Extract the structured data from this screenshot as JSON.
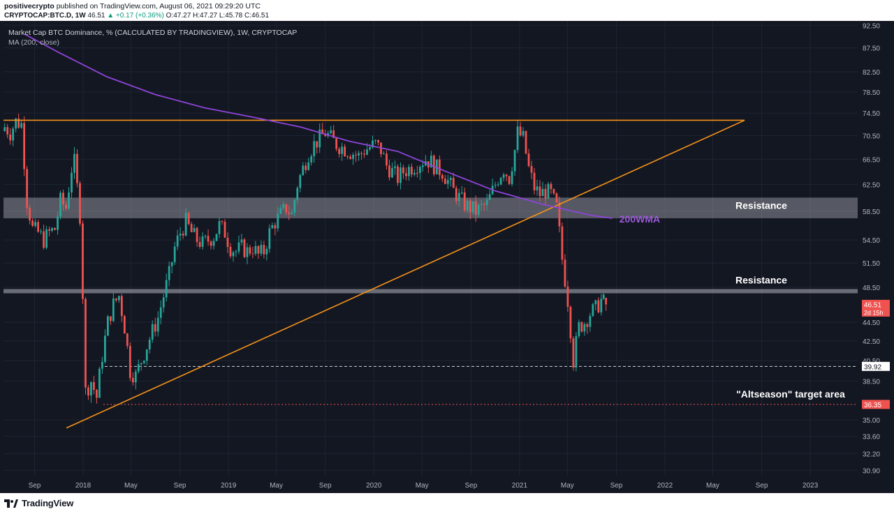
{
  "publication": {
    "author": "positivecrypto",
    "published_text": "published on TradingView.com, August 06, 2021 09:29:20 UTC",
    "symbol": "CRYPTOCAP:BTC.D, 1W",
    "last": "46.51",
    "change": "▲ +0.17 (+0.36%)",
    "ohlc": {
      "O": "47.27",
      "H": "47.27",
      "L": "45.78",
      "C": "46.51"
    }
  },
  "legend": {
    "series_title": "Market Cap BTC Dominance, % (CALCULATED BY TRADINGVIEW), 1W, CRYPTOCAP",
    "ma_title": "MA (200, close)"
  },
  "footer": {
    "brand": "TradingView"
  },
  "colors": {
    "background": "#131722",
    "grid": "#1f2433",
    "up": "#26a69a",
    "down": "#ef5350",
    "ma": "#8e44d9",
    "trendline": "#f7931a",
    "zone": "#b2b5be",
    "price_badge": "#ef5350",
    "axis_text": "#b2b5be"
  },
  "chart_data": {
    "type": "candlestick",
    "title": "Market Cap BTC Dominance, % (CALCULATED BY TRADINGVIEW), 1W, CRYPTOCAP",
    "xlim": [
      "2017-06-15",
      "2023-04-30"
    ],
    "ylim": [
      30.5,
      93.5
    ],
    "y_scale": "log",
    "y_ticks": [
      "92.50",
      "87.50",
      "82.50",
      "78.50",
      "74.50",
      "70.50",
      "66.50",
      "62.50",
      "58.50",
      "54.50",
      "51.50",
      "48.50",
      "44.50",
      "42.50",
      "40.50",
      "38.50",
      "35.00",
      "33.60",
      "32.20",
      "30.90"
    ],
    "x_ticks": [
      {
        "label": "Sep",
        "date": "2017-09-01"
      },
      {
        "label": "2018",
        "date": "2018-01-01"
      },
      {
        "label": "May",
        "date": "2018-05-01"
      },
      {
        "label": "Sep",
        "date": "2018-09-01"
      },
      {
        "label": "2019",
        "date": "2019-01-01"
      },
      {
        "label": "May",
        "date": "2019-05-01"
      },
      {
        "label": "Sep",
        "date": "2019-09-01"
      },
      {
        "label": "2020",
        "date": "2020-01-01"
      },
      {
        "label": "May",
        "date": "2020-05-01"
      },
      {
        "label": "Sep",
        "date": "2020-09-01"
      },
      {
        "label": "2021",
        "date": "2021-01-01"
      },
      {
        "label": "May",
        "date": "2021-05-01"
      },
      {
        "label": "Sep",
        "date": "2021-09-01"
      },
      {
        "label": "2022",
        "date": "2022-01-01"
      },
      {
        "label": "May",
        "date": "2022-05-01"
      },
      {
        "label": "Sep",
        "date": "2022-09-01"
      },
      {
        "label": "2023",
        "date": "2023-01-01"
      }
    ],
    "weekly_close": [
      {
        "date": "2017-06-18",
        "close": 72.0
      },
      {
        "date": "2017-07-02",
        "close": 71.0
      },
      {
        "date": "2017-07-16",
        "close": 73.0
      },
      {
        "date": "2017-07-30",
        "close": 72.5
      },
      {
        "date": "2017-08-13",
        "close": 60.0
      },
      {
        "date": "2017-08-27",
        "close": 56.0
      },
      {
        "date": "2017-09-10",
        "close": 55.5
      },
      {
        "date": "2017-09-24",
        "close": 54.5
      },
      {
        "date": "2017-10-08",
        "close": 55.5
      },
      {
        "date": "2017-10-22",
        "close": 56.0
      },
      {
        "date": "2017-11-05",
        "close": 60.0
      },
      {
        "date": "2017-11-19",
        "close": 59.0
      },
      {
        "date": "2017-12-03",
        "close": 65.0
      },
      {
        "date": "2017-12-10",
        "close": 66.0
      },
      {
        "date": "2017-12-24",
        "close": 58.0
      },
      {
        "date": "2018-01-07",
        "close": 37.5
      },
      {
        "date": "2018-01-21",
        "close": 38.5
      },
      {
        "date": "2018-02-04",
        "close": 37.0
      },
      {
        "date": "2018-02-18",
        "close": 41.0
      },
      {
        "date": "2018-03-04",
        "close": 44.5
      },
      {
        "date": "2018-03-18",
        "close": 46.5
      },
      {
        "date": "2018-04-01",
        "close": 47.5
      },
      {
        "date": "2018-04-15",
        "close": 44.0
      },
      {
        "date": "2018-04-29",
        "close": 39.5
      },
      {
        "date": "2018-05-13",
        "close": 39.0
      },
      {
        "date": "2018-05-27",
        "close": 40.5
      },
      {
        "date": "2018-06-10",
        "close": 42.0
      },
      {
        "date": "2018-06-24",
        "close": 43.5
      },
      {
        "date": "2018-07-08",
        "close": 45.0
      },
      {
        "date": "2018-07-22",
        "close": 47.5
      },
      {
        "date": "2018-08-05",
        "close": 50.0
      },
      {
        "date": "2018-08-19",
        "close": 53.5
      },
      {
        "date": "2018-09-02",
        "close": 55.5
      },
      {
        "date": "2018-09-16",
        "close": 57.0
      },
      {
        "date": "2018-09-30",
        "close": 55.5
      },
      {
        "date": "2018-10-14",
        "close": 54.5
      },
      {
        "date": "2018-10-28",
        "close": 54.0
      },
      {
        "date": "2018-11-11",
        "close": 54.5
      },
      {
        "date": "2018-11-25",
        "close": 55.0
      },
      {
        "date": "2018-12-09",
        "close": 56.5
      },
      {
        "date": "2018-12-23",
        "close": 55.5
      },
      {
        "date": "2019-01-06",
        "close": 53.5
      },
      {
        "date": "2019-01-20",
        "close": 53.0
      },
      {
        "date": "2019-02-03",
        "close": 53.5
      },
      {
        "date": "2019-02-17",
        "close": 53.0
      },
      {
        "date": "2019-03-03",
        "close": 53.5
      },
      {
        "date": "2019-03-17",
        "close": 52.5
      },
      {
        "date": "2019-03-31",
        "close": 53.0
      },
      {
        "date": "2019-04-14",
        "close": 55.5
      },
      {
        "date": "2019-04-28",
        "close": 57.0
      },
      {
        "date": "2019-05-12",
        "close": 58.0
      },
      {
        "date": "2019-05-26",
        "close": 59.0
      },
      {
        "date": "2019-06-09",
        "close": 58.0
      },
      {
        "date": "2019-06-23",
        "close": 62.5
      },
      {
        "date": "2019-07-07",
        "close": 65.0
      },
      {
        "date": "2019-07-21",
        "close": 67.5
      },
      {
        "date": "2019-08-04",
        "close": 69.0
      },
      {
        "date": "2019-08-18",
        "close": 70.0
      },
      {
        "date": "2019-09-01",
        "close": 71.0
      },
      {
        "date": "2019-09-15",
        "close": 70.0
      },
      {
        "date": "2019-09-29",
        "close": 69.0
      },
      {
        "date": "2019-10-13",
        "close": 68.5
      },
      {
        "date": "2019-10-27",
        "close": 68.0
      },
      {
        "date": "2019-11-10",
        "close": 67.5
      },
      {
        "date": "2019-11-24",
        "close": 67.0
      },
      {
        "date": "2019-12-08",
        "close": 68.0
      },
      {
        "date": "2019-12-22",
        "close": 68.5
      },
      {
        "date": "2020-01-05",
        "close": 69.0
      },
      {
        "date": "2020-01-19",
        "close": 68.0
      },
      {
        "date": "2020-02-02",
        "close": 65.5
      },
      {
        "date": "2020-02-16",
        "close": 64.5
      },
      {
        "date": "2020-03-01",
        "close": 63.5
      },
      {
        "date": "2020-03-15",
        "close": 64.5
      },
      {
        "date": "2020-03-29",
        "close": 65.0
      },
      {
        "date": "2020-04-12",
        "close": 65.5
      },
      {
        "date": "2020-04-26",
        "close": 66.0
      },
      {
        "date": "2020-05-10",
        "close": 66.5
      },
      {
        "date": "2020-05-24",
        "close": 66.0
      },
      {
        "date": "2020-06-07",
        "close": 65.0
      },
      {
        "date": "2020-06-21",
        "close": 64.5
      },
      {
        "date": "2020-07-05",
        "close": 63.0
      },
      {
        "date": "2020-07-19",
        "close": 61.5
      },
      {
        "date": "2020-08-02",
        "close": 60.5
      },
      {
        "date": "2020-08-16",
        "close": 59.5
      },
      {
        "date": "2020-08-30",
        "close": 59.0
      },
      {
        "date": "2020-09-13",
        "close": 58.5
      },
      {
        "date": "2020-09-27",
        "close": 59.0
      },
      {
        "date": "2020-10-11",
        "close": 59.5
      },
      {
        "date": "2020-10-25",
        "close": 61.5
      },
      {
        "date": "2020-11-08",
        "close": 63.5
      },
      {
        "date": "2020-11-22",
        "close": 65.0
      },
      {
        "date": "2020-12-06",
        "close": 63.5
      },
      {
        "date": "2020-12-20",
        "close": 68.0
      },
      {
        "date": "2020-12-27",
        "close": 71.0
      },
      {
        "date": "2021-01-10",
        "close": 70.0
      },
      {
        "date": "2021-01-24",
        "close": 65.0
      },
      {
        "date": "2021-02-07",
        "close": 62.0
      },
      {
        "date": "2021-02-21",
        "close": 61.0
      },
      {
        "date": "2021-03-07",
        "close": 61.5
      },
      {
        "date": "2021-03-21",
        "close": 61.0
      },
      {
        "date": "2021-04-04",
        "close": 59.0
      },
      {
        "date": "2021-04-18",
        "close": 52.0
      },
      {
        "date": "2021-05-02",
        "close": 47.0
      },
      {
        "date": "2021-05-16",
        "close": 40.5
      },
      {
        "date": "2021-05-30",
        "close": 44.0
      },
      {
        "date": "2021-06-13",
        "close": 44.5
      },
      {
        "date": "2021-06-27",
        "close": 45.5
      },
      {
        "date": "2021-07-11",
        "close": 46.0
      },
      {
        "date": "2021-07-25",
        "close": 47.0
      },
      {
        "date": "2021-08-06",
        "close": 46.51
      }
    ],
    "ma200": [
      {
        "date": "2017-08-07",
        "value": 90.5
      },
      {
        "date": "2017-11-01",
        "value": 86.5
      },
      {
        "date": "2018-03-01",
        "value": 81.5
      },
      {
        "date": "2018-07-01",
        "value": 78.0
      },
      {
        "date": "2018-11-01",
        "value": 75.5
      },
      {
        "date": "2019-03-01",
        "value": 73.8
      },
      {
        "date": "2019-07-01",
        "value": 72.0
      },
      {
        "date": "2019-11-01",
        "value": 69.5
      },
      {
        "date": "2020-03-01",
        "value": 67.8
      },
      {
        "date": "2020-07-01",
        "value": 64.5
      },
      {
        "date": "2020-11-01",
        "value": 61.5
      },
      {
        "date": "2021-03-01",
        "value": 59.5
      },
      {
        "date": "2021-07-01",
        "value": 57.9
      },
      {
        "date": "2021-08-22",
        "value": 57.5
      }
    ],
    "trendlines": [
      {
        "name": "horizontal",
        "points": [
          {
            "date": "2017-06-15",
            "value": 73.2
          },
          {
            "date": "2022-07-20",
            "value": 73.2
          }
        ]
      },
      {
        "name": "rising",
        "points": [
          {
            "date": "2017-11-20",
            "value": 34.3
          },
          {
            "date": "2022-07-20",
            "value": 73.2
          }
        ]
      }
    ],
    "zones": [
      {
        "label": "Resistance",
        "from": 57.5,
        "to": 60.5
      },
      {
        "label": "Resistance",
        "from": 47.8,
        "to": 48.3
      }
    ],
    "levels": [
      {
        "value": 39.92,
        "label": "39.92",
        "style": "white-dashed"
      },
      {
        "value": 36.35,
        "label": "36.35",
        "style": "red-dotted"
      }
    ],
    "annotations": {
      "ma_label": "200WMA",
      "target": "\"Altseason\" target area"
    },
    "last_price": {
      "value": 46.51,
      "label": "46.51",
      "countdown": "2d 15h"
    }
  }
}
